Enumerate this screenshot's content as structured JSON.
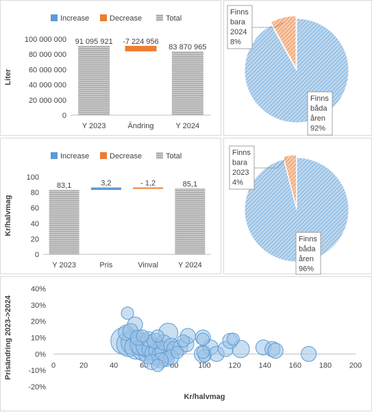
{
  "chart_data": [
    {
      "type": "waterfall",
      "ylabel": "Liter",
      "legend": [
        "Increase",
        "Decrease",
        "Total"
      ],
      "legend_position": "top",
      "categories": [
        "Y 2023",
        "Ändring",
        "Y 2024"
      ],
      "values": [
        91095921,
        -7224956,
        83870965
      ],
      "labels": [
        "91 095 921",
        "-7 224 956",
        "83 870 965"
      ],
      "kinds": [
        "total",
        "decrease",
        "total"
      ],
      "ylim": [
        0,
        100000000
      ],
      "yticks": [
        0,
        20000000,
        40000000,
        60000000,
        80000000,
        100000000
      ],
      "ytick_labels": [
        "0",
        "20 000 000",
        "40 000 000",
        "60 000 000",
        "80 000 000",
        "100 000 000"
      ],
      "grid": false
    },
    {
      "type": "pie",
      "slices": [
        {
          "label": [
            "Finns",
            "bara",
            "2024",
            "8%"
          ],
          "value": 8
        },
        {
          "label": [
            "Finns",
            "båda",
            "åren",
            "92%"
          ],
          "value": 92
        }
      ]
    },
    {
      "type": "waterfall",
      "ylabel": "Kr/halvmag",
      "legend": [
        "Increase",
        "Decrease",
        "Total"
      ],
      "legend_position": "top",
      "categories": [
        "Y 2023",
        "Pris",
        "Vinval",
        "Y 2024"
      ],
      "values": [
        83.1,
        3.2,
        -1.2,
        85.1
      ],
      "labels": [
        "83,1",
        "3,2",
        "- 1,2",
        "85,1"
      ],
      "kinds": [
        "total",
        "increase",
        "decrease",
        "total"
      ],
      "ylim": [
        0,
        100
      ],
      "yticks": [
        0,
        20,
        40,
        60,
        80,
        100
      ],
      "ytick_labels": [
        "0",
        "20",
        "40",
        "60",
        "80",
        "100"
      ],
      "grid": false
    },
    {
      "type": "pie",
      "slices": [
        {
          "label": [
            "Finns",
            "bara",
            "2023",
            "4%"
          ],
          "value": 4
        },
        {
          "label": [
            "Finns",
            "båda",
            "åren",
            "96%"
          ],
          "value": 96
        }
      ]
    },
    {
      "type": "scatter",
      "subtype": "bubble",
      "xlabel": "Kr/halvmag",
      "ylabel": "Prisändring 2023->2024",
      "xlim": [
        0,
        200
      ],
      "ylim": [
        -20,
        40
      ],
      "xticks": [
        0,
        20,
        40,
        60,
        80,
        100,
        120,
        140,
        160,
        180,
        200
      ],
      "yticks": [
        -20,
        -10,
        0,
        10,
        20,
        30,
        40
      ],
      "ytick_labels": [
        "-20%",
        "-10%",
        "0%",
        "10%",
        "20%",
        "30%",
        "40%"
      ],
      "grid": false,
      "points": [
        {
          "x": 47,
          "y": 8,
          "size": 10
        },
        {
          "x": 50,
          "y": 6,
          "size": 8
        },
        {
          "x": 53,
          "y": 7,
          "size": 8
        },
        {
          "x": 55,
          "y": 4,
          "size": 7
        },
        {
          "x": 58,
          "y": 6,
          "size": 6
        },
        {
          "x": 60,
          "y": 3,
          "size": 7
        },
        {
          "x": 62,
          "y": 5,
          "size": 6
        },
        {
          "x": 64,
          "y": 1,
          "size": 7
        },
        {
          "x": 66,
          "y": 3,
          "size": 6
        },
        {
          "x": 68,
          "y": 0,
          "size": 6
        },
        {
          "x": 70,
          "y": 2,
          "size": 5
        },
        {
          "x": 72,
          "y": -1,
          "size": 5
        },
        {
          "x": 74,
          "y": 1,
          "size": 5
        },
        {
          "x": 76,
          "y": 13,
          "size": 4
        },
        {
          "x": 49,
          "y": 25,
          "size": 1
        },
        {
          "x": 54,
          "y": 18,
          "size": 2
        },
        {
          "x": 48,
          "y": 13,
          "size": 2
        },
        {
          "x": 51,
          "y": 14,
          "size": 2
        },
        {
          "x": 56,
          "y": 10,
          "size": 2
        },
        {
          "x": 59,
          "y": 11,
          "size": 1
        },
        {
          "x": 63,
          "y": 9,
          "size": 2
        },
        {
          "x": 67,
          "y": 8,
          "size": 2
        },
        {
          "x": 69,
          "y": 11,
          "size": 1
        },
        {
          "x": 73,
          "y": 7,
          "size": 2
        },
        {
          "x": 78,
          "y": 5,
          "size": 2
        },
        {
          "x": 80,
          "y": 3,
          "size": 2
        },
        {
          "x": 82,
          "y": 1,
          "size": 1
        },
        {
          "x": 84,
          "y": 4,
          "size": 2
        },
        {
          "x": 86,
          "y": 8,
          "size": 1
        },
        {
          "x": 88,
          "y": 6,
          "size": 2
        },
        {
          "x": 89,
          "y": 11,
          "size": 2
        },
        {
          "x": 75,
          "y": -3,
          "size": 2
        },
        {
          "x": 78,
          "y": -2,
          "size": 2
        },
        {
          "x": 71,
          "y": -4,
          "size": 2
        },
        {
          "x": 69,
          "y": -7,
          "size": 1
        },
        {
          "x": 65,
          "y": -5,
          "size": 2
        },
        {
          "x": 99,
          "y": 10,
          "size": 2
        },
        {
          "x": 99,
          "y": 9,
          "size": 1
        },
        {
          "x": 104,
          "y": 4,
          "size": 2
        },
        {
          "x": 108,
          "y": 0,
          "size": 2
        },
        {
          "x": 99,
          "y": 0,
          "size": 3
        },
        {
          "x": 100,
          "y": -1,
          "size": 1
        },
        {
          "x": 99,
          "y": 1,
          "size": 1
        },
        {
          "x": 114,
          "y": 3,
          "size": 2
        },
        {
          "x": 117,
          "y": 8,
          "size": 2
        },
        {
          "x": 119,
          "y": 9,
          "size": 1
        },
        {
          "x": 124,
          "y": 3,
          "size": 3
        },
        {
          "x": 139,
          "y": 4,
          "size": 2
        },
        {
          "x": 145,
          "y": 3,
          "size": 2
        },
        {
          "x": 147,
          "y": 2,
          "size": 2
        },
        {
          "x": 169,
          "y": 0,
          "size": 2
        }
      ]
    }
  ],
  "colors": {
    "increase": "#5b9bd5",
    "decrease": "#ed7d31",
    "total": "#a5a5a5",
    "pie_fill": "#bdd7ee",
    "pie_hatch": "#5b9bd5",
    "pie_small": "#ed7d31",
    "bubble_fill": "#9dc3e6",
    "bubble_stroke": "#5b9bd5",
    "axis": "#bfbfbf",
    "text": "#404040"
  }
}
